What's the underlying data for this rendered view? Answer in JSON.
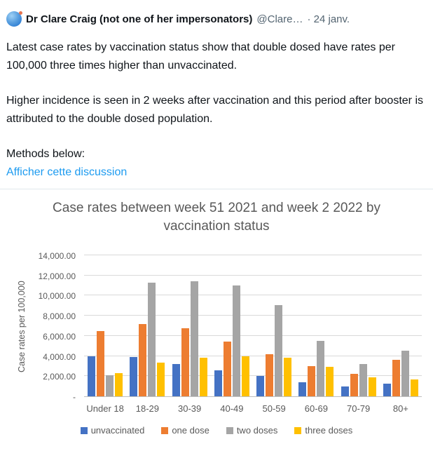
{
  "tweet": {
    "author": "Dr Clare Craig (not one of her impersonators)",
    "handle": "@Clare…",
    "timestamp": "· 24 janv.",
    "paragraphs": [
      "Latest case rates by vaccination status show that double dosed have rates per 100,000 three times higher than unvaccinated.",
      "Higher incidence is seen in 2 weeks after vaccination and this period after booster is attributed to the double dosed population.",
      "Methods below:"
    ],
    "link_label": "Afficher cette discussion"
  },
  "colors": {
    "link": "#1d9bf0",
    "secondary_text": "#536471",
    "chart_text": "#595959",
    "gridline": "#d9d9d9",
    "axis_line": "#bfbfbf"
  },
  "chart_data": {
    "type": "bar",
    "title": "Case rates between week 51 2021 and week 2 2022 by vaccination status",
    "xlabel": "",
    "ylabel": "Case rates per 100,000",
    "categories": [
      "Under 18",
      "18-29",
      "30-39",
      "40-49",
      "50-59",
      "60-69",
      "70-79",
      "80+"
    ],
    "series": [
      {
        "name": "unvaccinated",
        "color": "#4472C4",
        "values": [
          4000,
          3900,
          3200,
          2550,
          2050,
          1400,
          1000,
          1250
        ]
      },
      {
        "name": "one dose",
        "color": "#ED7D31",
        "values": [
          6450,
          7150,
          6750,
          5450,
          4200,
          3000,
          2250,
          3650
        ]
      },
      {
        "name": "two doses",
        "color": "#A5A5A5",
        "values": [
          2100,
          11250,
          11400,
          11000,
          9050,
          5500,
          3200,
          4550
        ]
      },
      {
        "name": "three doses",
        "color": "#FFC000",
        "values": [
          2300,
          3350,
          3800,
          3950,
          3850,
          2950,
          1900,
          1700
        ]
      }
    ],
    "ylim": [
      0,
      14000
    ],
    "ytick_step": 2000,
    "ytick_labels": [
      "-",
      "2,000.00",
      "4,000.00",
      "6,000.00",
      "8,000.00",
      "10,000.00",
      "12,000.00",
      "14,000.00"
    ],
    "grid": true,
    "legend_position": "bottom"
  }
}
